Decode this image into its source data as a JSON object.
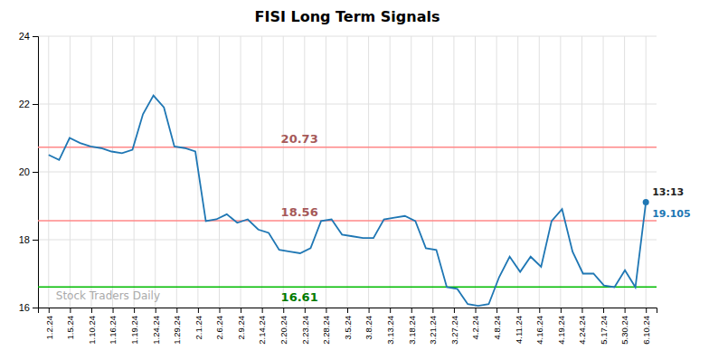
{
  "chart_data": {
    "type": "line",
    "title": "FISI Long Term Signals",
    "values": [
      20.5,
      20.35,
      21.0,
      20.85,
      20.75,
      20.7,
      20.6,
      20.55,
      20.65,
      21.7,
      22.25,
      21.9,
      20.75,
      20.7,
      20.6,
      18.55,
      18.6,
      18.75,
      18.5,
      18.6,
      18.3,
      18.2,
      17.7,
      17.65,
      17.6,
      17.75,
      18.55,
      18.6,
      18.15,
      18.1,
      18.05,
      18.05,
      18.6,
      18.65,
      18.7,
      18.55,
      17.75,
      17.7,
      16.6,
      16.55,
      16.1,
      16.05,
      16.1,
      16.9,
      17.5,
      17.05,
      17.5,
      17.2,
      18.55,
      18.9,
      17.65,
      17.0,
      17.0,
      16.65,
      16.6,
      17.1,
      16.6,
      19.105
    ],
    "xlim": [
      -0.5,
      28.5
    ],
    "xticks": [
      {
        "value": 0,
        "label": "1.2.24"
      },
      {
        "value": 1,
        "label": "1.5.24"
      },
      {
        "value": 2,
        "label": "1.10.24"
      },
      {
        "value": 3,
        "label": "1.16.24"
      },
      {
        "value": 4,
        "label": "1.19.24"
      },
      {
        "value": 5,
        "label": "1.24.24"
      },
      {
        "value": 6,
        "label": "1.29.24"
      },
      {
        "value": 7,
        "label": "2.1.24"
      },
      {
        "value": 8,
        "label": "2.6.24"
      },
      {
        "value": 9,
        "label": "2.9.24"
      },
      {
        "value": 10,
        "label": "2.14.24"
      },
      {
        "value": 11,
        "label": "2.20.24"
      },
      {
        "value": 12,
        "label": "2.23.24"
      },
      {
        "value": 13,
        "label": "2.28.24"
      },
      {
        "value": 14,
        "label": "3.5.24"
      },
      {
        "value": 15,
        "label": "3.8.24"
      },
      {
        "value": 16,
        "label": "3.13.24"
      },
      {
        "value": 17,
        "label": "3.18.24"
      },
      {
        "value": 18,
        "label": "3.21.24"
      },
      {
        "value": 19,
        "label": "3.27.24"
      },
      {
        "value": 20,
        "label": "4.2.24"
      },
      {
        "value": 21,
        "label": "4.8.24"
      },
      {
        "value": 22,
        "label": "4.11.24"
      },
      {
        "value": 23,
        "label": "4.16.24"
      },
      {
        "value": 24,
        "label": "4.19.24"
      },
      {
        "value": 25,
        "label": "4.24.24"
      },
      {
        "value": 26,
        "label": "5.17.24"
      },
      {
        "value": 27,
        "label": "5.30.24"
      },
      {
        "value": 28,
        "label": "6.10.24"
      }
    ],
    "ylim": [
      16.0,
      24.0
    ],
    "yticks": [
      16,
      18,
      20,
      22,
      24
    ],
    "grid": true,
    "hlines": [
      {
        "value": 20.73,
        "label": "20.73",
        "color": "#ff8888"
      },
      {
        "value": 18.56,
        "label": "18.56",
        "color": "#ff8888"
      },
      {
        "value": 16.61,
        "label": "16.61",
        "color": "#00bb00"
      }
    ],
    "annotations": [
      {
        "text": "13:13"
      },
      {
        "text": "19.105"
      },
      {
        "text": "Stock Traders Daily"
      }
    ]
  }
}
